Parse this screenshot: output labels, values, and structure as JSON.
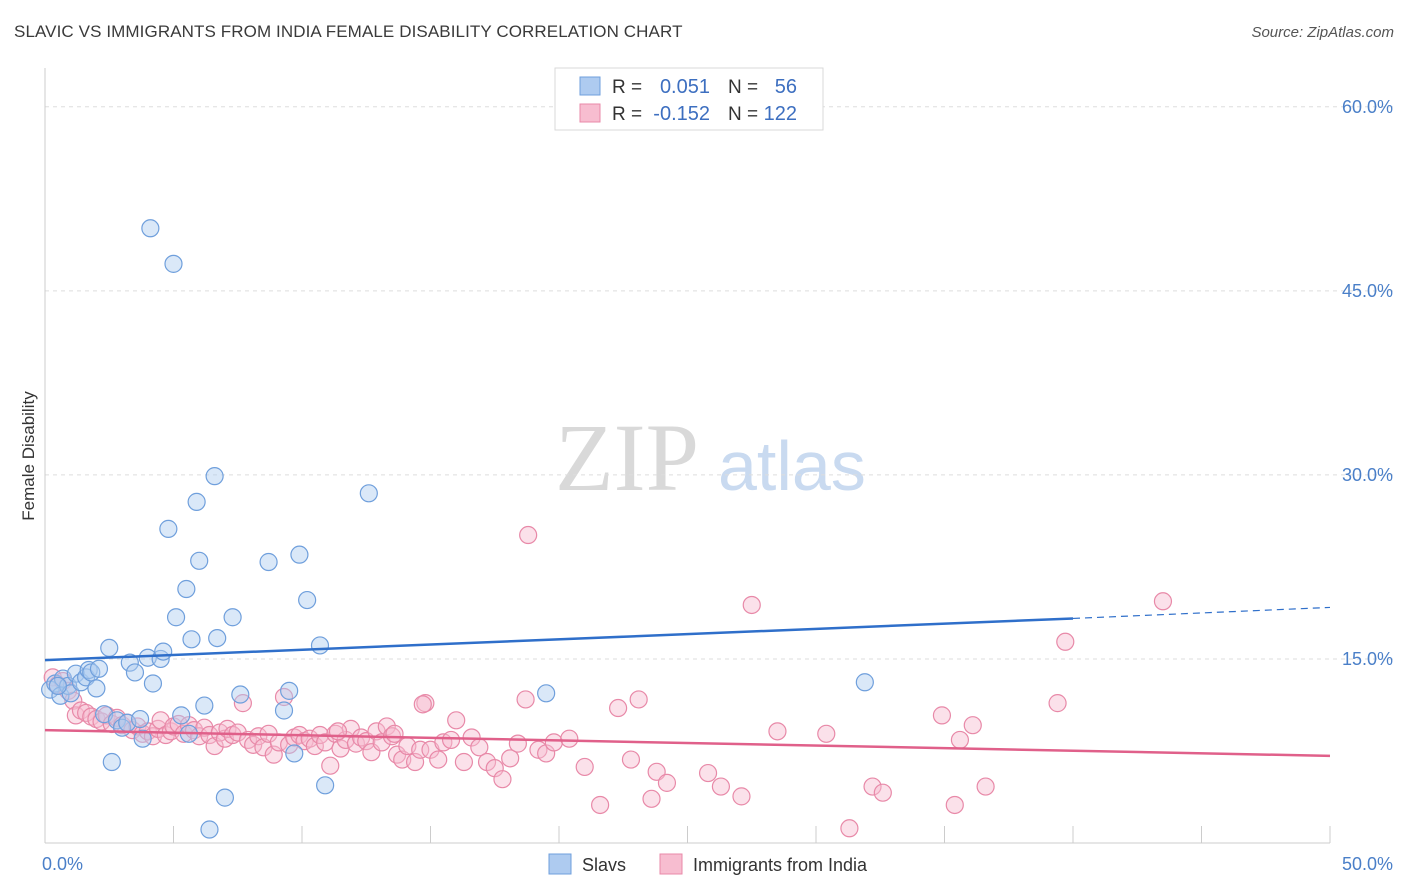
{
  "header": {
    "title": "SLAVIC VS IMMIGRANTS FROM INDIA FEMALE DISABILITY CORRELATION CHART",
    "source": "Source: ZipAtlas.com"
  },
  "watermark": {
    "zip": "ZIP",
    "atlas": "atlas"
  },
  "colors": {
    "slavs_fill": "#aecbf0",
    "slavs_stroke": "#6f9fdc",
    "slavs_line": "#2f6fca",
    "india_fill": "#f7bdd0",
    "india_stroke": "#e889a8",
    "india_line": "#e0608a",
    "grid": "#dddddd",
    "tick_text": "#4a7fc8"
  },
  "legend": {
    "slavs": {
      "r_label": "R =",
      "r_value": "0.051",
      "n_label": "N =",
      "n_value": "56"
    },
    "india": {
      "r_label": "R =",
      "r_value": "-0.152",
      "n_label": "N =",
      "n_value": "122"
    }
  },
  "bottom_legend": {
    "slavs": "Slavs",
    "india": "Immigrants from India"
  },
  "chart_data": {
    "type": "scatter",
    "title": "SLAVIC VS IMMIGRANTS FROM INDIA FEMALE DISABILITY CORRELATION CHART",
    "xlabel": "",
    "ylabel": "Female Disability",
    "xlim": [
      0,
      50
    ],
    "ylim": [
      0,
      63
    ],
    "x_tick_labels": [
      {
        "value": 0,
        "label": "0.0%"
      },
      {
        "value": 50,
        "label": "50.0%"
      }
    ],
    "y_tick_labels": [
      {
        "value": 15,
        "label": "15.0%"
      },
      {
        "value": 30,
        "label": "30.0%"
      },
      {
        "value": 45,
        "label": "45.0%"
      },
      {
        "value": 60,
        "label": "60.0%"
      }
    ],
    "series": [
      {
        "name": "Slavs",
        "R": 0.051,
        "N": 56,
        "trend": {
          "x0": 0,
          "y0": 14.9,
          "x1": 40,
          "y1": 18.3,
          "dash_to_x": 50,
          "dash_to_y": 19.2
        },
        "points": [
          [
            0.2,
            12.5
          ],
          [
            0.4,
            13.0
          ],
          [
            0.6,
            12.0
          ],
          [
            0.7,
            13.4
          ],
          [
            0.9,
            12.8
          ],
          [
            1.0,
            12.2
          ],
          [
            1.2,
            13.8
          ],
          [
            1.4,
            13.1
          ],
          [
            1.6,
            13.5
          ],
          [
            1.7,
            14.1
          ],
          [
            1.8,
            13.9
          ],
          [
            2.0,
            12.6
          ],
          [
            2.1,
            14.2
          ],
          [
            2.3,
            10.5
          ],
          [
            2.5,
            15.9
          ],
          [
            2.6,
            6.6
          ],
          [
            2.8,
            10.0
          ],
          [
            3.0,
            9.4
          ],
          [
            3.2,
            9.8
          ],
          [
            3.3,
            14.7
          ],
          [
            3.5,
            13.9
          ],
          [
            3.7,
            10.1
          ],
          [
            3.8,
            8.5
          ],
          [
            4.0,
            15.1
          ],
          [
            4.2,
            13.0
          ],
          [
            4.1,
            50.1
          ],
          [
            4.5,
            15.0
          ],
          [
            4.6,
            15.6
          ],
          [
            4.8,
            25.6
          ],
          [
            5.0,
            47.2
          ],
          [
            5.1,
            18.4
          ],
          [
            5.3,
            10.4
          ],
          [
            5.5,
            20.7
          ],
          [
            5.6,
            8.9
          ],
          [
            5.7,
            16.6
          ],
          [
            5.9,
            27.8
          ],
          [
            6.0,
            23.0
          ],
          [
            6.2,
            11.2
          ],
          [
            6.4,
            1.1
          ],
          [
            6.6,
            29.9
          ],
          [
            6.7,
            16.7
          ],
          [
            7.0,
            3.7
          ],
          [
            7.3,
            18.4
          ],
          [
            7.6,
            12.1
          ],
          [
            8.7,
            22.9
          ],
          [
            9.3,
            10.8
          ],
          [
            9.5,
            12.4
          ],
          [
            9.7,
            7.3
          ],
          [
            9.9,
            23.5
          ],
          [
            10.2,
            19.8
          ],
          [
            10.7,
            16.1
          ],
          [
            10.9,
            4.7
          ],
          [
            12.6,
            28.5
          ],
          [
            19.5,
            12.2
          ],
          [
            31.9,
            13.1
          ],
          [
            0.5,
            12.8
          ]
        ]
      },
      {
        "name": "Immigrants from India",
        "R": -0.152,
        "N": 122,
        "trend": {
          "x0": 0,
          "y0": 9.2,
          "x1": 50,
          "y1": 7.1
        },
        "points": [
          [
            0.3,
            13.5
          ],
          [
            0.5,
            12.9
          ],
          [
            0.7,
            13.2
          ],
          [
            0.9,
            12.4
          ],
          [
            1.1,
            11.6
          ],
          [
            1.2,
            10.4
          ],
          [
            1.4,
            10.8
          ],
          [
            1.6,
            10.6
          ],
          [
            1.8,
            10.3
          ],
          [
            2.0,
            10.1
          ],
          [
            2.2,
            9.9
          ],
          [
            2.4,
            10.4
          ],
          [
            2.6,
            9.7
          ],
          [
            2.8,
            10.2
          ],
          [
            3.0,
            9.6
          ],
          [
            3.2,
            9.8
          ],
          [
            3.4,
            9.2
          ],
          [
            3.6,
            9.5
          ],
          [
            3.8,
            8.9
          ],
          [
            4.0,
            9.1
          ],
          [
            4.2,
            8.7
          ],
          [
            4.4,
            9.3
          ],
          [
            4.5,
            10.0
          ],
          [
            4.7,
            8.8
          ],
          [
            4.9,
            9.1
          ],
          [
            5.0,
            9.5
          ],
          [
            5.2,
            9.7
          ],
          [
            5.4,
            8.9
          ],
          [
            5.6,
            9.6
          ],
          [
            5.8,
            9.2
          ],
          [
            6.0,
            8.7
          ],
          [
            6.2,
            9.4
          ],
          [
            6.4,
            8.8
          ],
          [
            6.6,
            7.9
          ],
          [
            6.8,
            9.0
          ],
          [
            7.0,
            8.5
          ],
          [
            7.1,
            9.3
          ],
          [
            7.3,
            8.8
          ],
          [
            7.5,
            9.0
          ],
          [
            7.7,
            11.4
          ],
          [
            7.9,
            8.4
          ],
          [
            8.1,
            8.0
          ],
          [
            8.3,
            8.7
          ],
          [
            8.5,
            7.8
          ],
          [
            8.7,
            8.9
          ],
          [
            8.9,
            7.2
          ],
          [
            9.1,
            8.2
          ],
          [
            9.3,
            11.9
          ],
          [
            9.5,
            8.0
          ],
          [
            9.7,
            8.6
          ],
          [
            9.9,
            8.8
          ],
          [
            10.1,
            8.3
          ],
          [
            10.3,
            8.5
          ],
          [
            10.5,
            7.9
          ],
          [
            10.7,
            8.8
          ],
          [
            10.9,
            8.2
          ],
          [
            11.1,
            6.3
          ],
          [
            11.3,
            8.9
          ],
          [
            11.5,
            7.7
          ],
          [
            11.7,
            8.4
          ],
          [
            11.9,
            9.3
          ],
          [
            12.1,
            8.1
          ],
          [
            12.3,
            8.6
          ],
          [
            12.5,
            8.3
          ],
          [
            12.7,
            7.4
          ],
          [
            12.9,
            9.1
          ],
          [
            13.1,
            8.2
          ],
          [
            13.3,
            9.5
          ],
          [
            13.5,
            8.7
          ],
          [
            13.7,
            7.2
          ],
          [
            13.9,
            6.8
          ],
          [
            14.1,
            7.9
          ],
          [
            14.4,
            6.6
          ],
          [
            14.6,
            7.6
          ],
          [
            14.8,
            11.4
          ],
          [
            15.0,
            7.6
          ],
          [
            15.3,
            6.8
          ],
          [
            15.5,
            8.2
          ],
          [
            15.8,
            8.4
          ],
          [
            16.0,
            10.0
          ],
          [
            16.3,
            6.6
          ],
          [
            16.6,
            8.6
          ],
          [
            16.9,
            7.8
          ],
          [
            17.2,
            6.6
          ],
          [
            17.5,
            6.1
          ],
          [
            17.8,
            5.2
          ],
          [
            18.1,
            6.9
          ],
          [
            18.4,
            8.1
          ],
          [
            18.7,
            11.7
          ],
          [
            18.8,
            25.1
          ],
          [
            19.2,
            7.6
          ],
          [
            19.5,
            7.3
          ],
          [
            19.8,
            8.2
          ],
          [
            20.4,
            8.5
          ],
          [
            21.0,
            6.2
          ],
          [
            21.6,
            3.1
          ],
          [
            22.3,
            11.0
          ],
          [
            22.8,
            6.8
          ],
          [
            23.1,
            11.7
          ],
          [
            23.6,
            3.6
          ],
          [
            23.8,
            5.8
          ],
          [
            24.2,
            4.9
          ],
          [
            25.8,
            5.7
          ],
          [
            26.3,
            4.6
          ],
          [
            27.1,
            3.8
          ],
          [
            27.5,
            19.4
          ],
          [
            28.5,
            9.1
          ],
          [
            30.4,
            8.9
          ],
          [
            31.3,
            1.2
          ],
          [
            32.2,
            4.6
          ],
          [
            32.6,
            4.1
          ],
          [
            34.9,
            10.4
          ],
          [
            35.4,
            3.1
          ],
          [
            35.6,
            8.4
          ],
          [
            36.1,
            9.6
          ],
          [
            36.6,
            4.6
          ],
          [
            39.4,
            11.4
          ],
          [
            39.7,
            16.4
          ],
          [
            43.5,
            19.7
          ],
          [
            14.7,
            11.3
          ],
          [
            13.6,
            8.9
          ],
          [
            11.4,
            9.1
          ]
        ]
      }
    ]
  }
}
